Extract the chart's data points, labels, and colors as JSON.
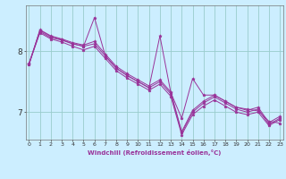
{
  "xlabel": "Windchill (Refroidissement éolien,°C)",
  "background_color": "#cceeff",
  "line_color": "#993399",
  "grid_color": "#99cccc",
  "yticks": [
    7,
    8
  ],
  "xticks": [
    0,
    1,
    2,
    3,
    4,
    5,
    6,
    7,
    8,
    9,
    10,
    11,
    12,
    13,
    14,
    15,
    16,
    17,
    18,
    19,
    20,
    21,
    22,
    23
  ],
  "ylim": [
    6.55,
    8.75
  ],
  "xlim": [
    -0.3,
    23.3
  ],
  "series": [
    [
      7.78,
      8.32,
      8.22,
      8.18,
      8.12,
      8.08,
      8.55,
      7.92,
      7.72,
      7.6,
      7.5,
      7.4,
      8.25,
      7.32,
      6.9,
      7.55,
      7.28,
      7.28,
      7.18,
      7.08,
      7.05,
      7.02,
      6.85,
      6.82
    ],
    [
      7.78,
      8.35,
      8.25,
      8.2,
      8.14,
      8.1,
      8.16,
      7.95,
      7.75,
      7.63,
      7.53,
      7.43,
      7.53,
      7.33,
      6.68,
      7.03,
      7.18,
      7.28,
      7.18,
      7.08,
      7.03,
      7.08,
      6.83,
      6.93
    ],
    [
      7.8,
      8.34,
      8.24,
      8.19,
      8.12,
      8.08,
      8.12,
      7.92,
      7.72,
      7.6,
      7.5,
      7.4,
      7.5,
      7.3,
      6.66,
      7.0,
      7.15,
      7.25,
      7.15,
      7.05,
      7.0,
      7.05,
      6.8,
      6.9
    ],
    [
      7.8,
      8.3,
      8.2,
      8.15,
      8.08,
      8.02,
      8.08,
      7.88,
      7.68,
      7.56,
      7.46,
      7.36,
      7.46,
      7.26,
      6.63,
      6.96,
      7.1,
      7.2,
      7.1,
      7.0,
      6.96,
      7.0,
      6.78,
      6.88
    ]
  ]
}
